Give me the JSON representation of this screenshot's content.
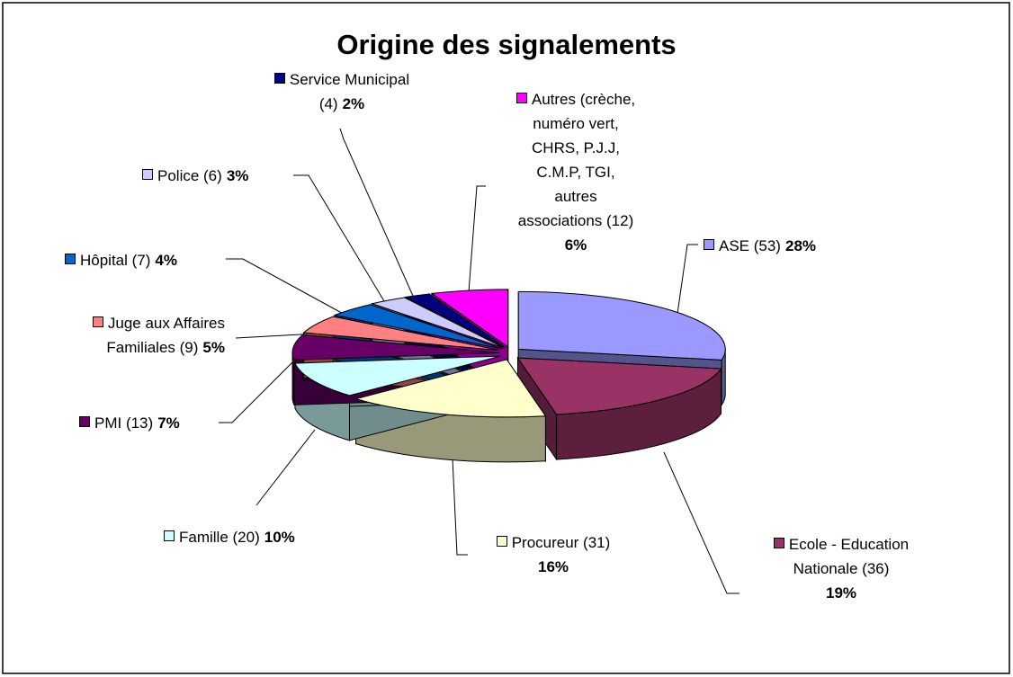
{
  "chart_data": {
    "type": "pie3d",
    "title": "Origine des signalements",
    "categories": [
      "ASE (53)",
      "Ecole - Education\nNationale (36)",
      "Procureur (31)",
      "Famille (20)",
      "PMI (13)",
      "Juge aux Affaires\nFamiliales (9)",
      "Hôpital (7)",
      "Police (6)",
      "Service Municipal\n(4)",
      "Autres (crèche,\nnuméro vert,\nCHRS, P.J.J,\nC.M.P, TGI,\nautres\nassociations (12)"
    ],
    "values": [
      28,
      19,
      16,
      10,
      7,
      5,
      4,
      3,
      2,
      6
    ],
    "value_labels": [
      "28%",
      "19%",
      "16%",
      "10%",
      "7%",
      "5%",
      "4%",
      "3%",
      "2%",
      "6%"
    ],
    "colors": [
      "#9999ff",
      "#993366",
      "#ffffcc",
      "#ccffff",
      "#660066",
      "#ff8080",
      "#0066cc",
      "#ccccff",
      "#000080",
      "#ff00ff"
    ]
  }
}
